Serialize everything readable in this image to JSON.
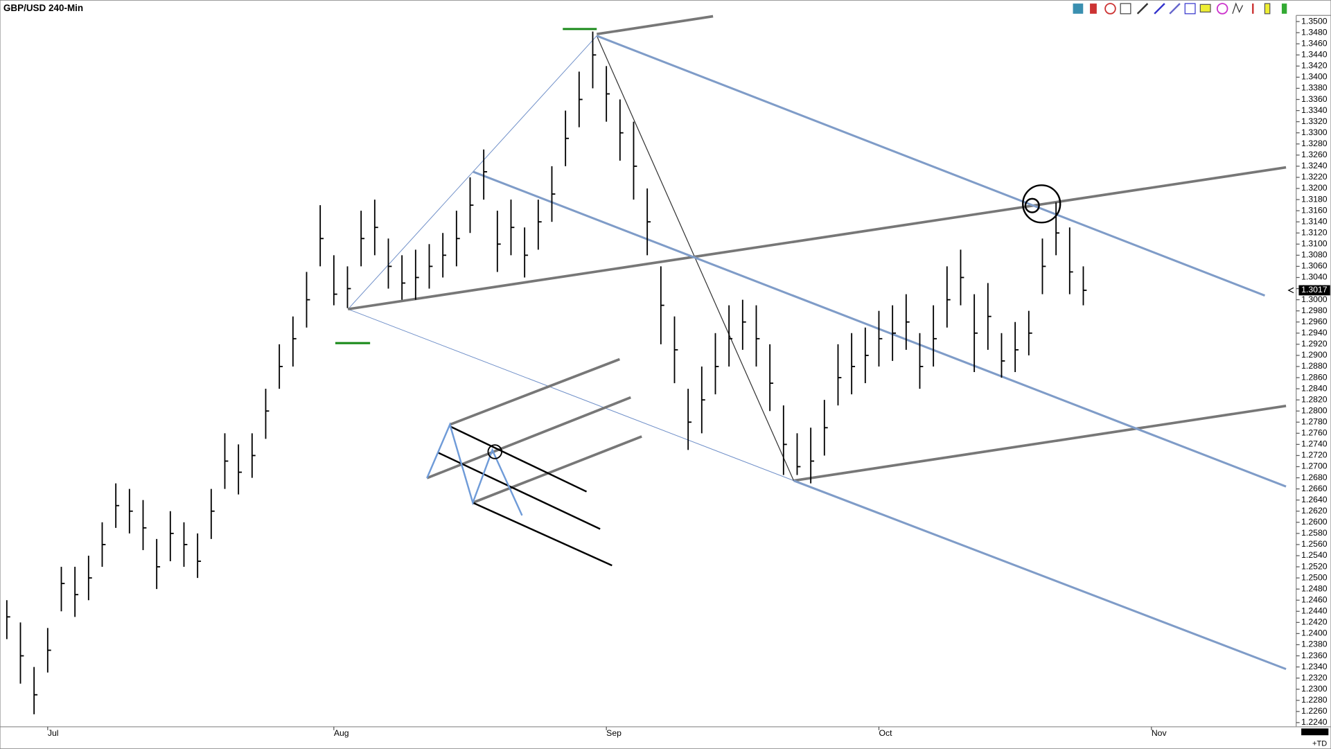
{
  "chart_data": {
    "type": "ohlc",
    "title": "GBP/USD 240-Min",
    "categories": [
      null,
      null,
      null,
      "Jul",
      null,
      null,
      null,
      null,
      null,
      null,
      null,
      null,
      null,
      null,
      null,
      null,
      null,
      null,
      null,
      null,
      null,
      null,
      null,
      null,
      "Aug",
      null,
      null,
      null,
      null,
      null,
      null,
      null,
      null,
      null,
      null,
      null,
      null,
      null,
      null,
      null,
      null,
      null,
      null,
      null,
      "Sep",
      null,
      null,
      null,
      null,
      null,
      null,
      null,
      null,
      null,
      null,
      null,
      null,
      null,
      null,
      null,
      null,
      null,
      null,
      null,
      "Oct",
      null,
      null,
      null,
      null,
      null,
      null,
      null,
      null,
      null,
      null,
      null,
      null,
      null,
      null,
      null,
      null,
      null,
      null,
      null,
      "Nov",
      null,
      null,
      null,
      null,
      null,
      null,
      null,
      null,
      null,
      null
    ],
    "high": [
      1.246,
      1.242,
      1.234,
      1.241,
      1.252,
      1.252,
      1.254,
      1.26,
      1.267,
      1.266,
      1.264,
      1.257,
      1.262,
      1.26,
      1.258,
      1.266,
      1.276,
      1.274,
      1.276,
      1.284,
      1.292,
      1.297,
      1.305,
      1.317,
      1.308,
      1.306,
      1.316,
      1.318,
      1.311,
      1.308,
      1.309,
      1.31,
      1.312,
      1.316,
      1.322,
      1.327,
      1.316,
      1.318,
      1.313,
      1.318,
      1.324,
      1.334,
      1.341,
      1.3482,
      1.342,
      1.336,
      1.332,
      1.32,
      1.306,
      1.297,
      1.284,
      1.288,
      1.294,
      1.299,
      1.3,
      1.299,
      1.292,
      1.281,
      1.276,
      1.277,
      1.282,
      1.292,
      1.294,
      1.295,
      1.298,
      1.299,
      1.301,
      1.294,
      1.299,
      1.306,
      1.309,
      1.301,
      1.303,
      1.294,
      1.296,
      1.298,
      1.311,
      1.3175,
      1.313,
      1.306,
      null,
      null,
      null,
      null,
      null,
      null,
      null,
      null,
      null,
      null,
      null,
      null,
      null,
      null,
      null
    ],
    "low": [
      1.239,
      1.231,
      1.2255,
      1.233,
      1.244,
      1.243,
      1.246,
      1.252,
      1.259,
      1.258,
      1.255,
      1.248,
      1.253,
      1.252,
      1.25,
      1.257,
      1.266,
      1.265,
      1.268,
      1.275,
      1.284,
      1.288,
      1.295,
      1.306,
      1.299,
      1.2985,
      1.306,
      1.308,
      1.302,
      1.3,
      1.3,
      1.302,
      1.304,
      1.306,
      1.312,
      1.318,
      1.305,
      1.308,
      1.304,
      1.309,
      1.314,
      1.324,
      1.331,
      1.338,
      1.332,
      1.325,
      1.318,
      1.308,
      1.292,
      1.285,
      1.273,
      1.276,
      1.283,
      1.288,
      1.291,
      1.288,
      1.28,
      1.2685,
      1.2685,
      1.267,
      1.272,
      1.281,
      1.283,
      1.285,
      1.288,
      1.289,
      1.291,
      1.284,
      1.288,
      1.295,
      1.299,
      1.287,
      1.291,
      1.286,
      1.287,
      1.29,
      1.301,
      1.308,
      1.301,
      1.299,
      null,
      null,
      null,
      null,
      null,
      null,
      null,
      null,
      null,
      null,
      null,
      null,
      null,
      null,
      null
    ],
    "close": [
      1.243,
      1.236,
      1.229,
      1.237,
      1.249,
      1.247,
      1.25,
      1.256,
      1.263,
      1.262,
      1.259,
      1.252,
      1.258,
      1.256,
      1.253,
      1.262,
      1.271,
      1.269,
      1.272,
      1.28,
      1.288,
      1.293,
      1.3,
      1.311,
      1.301,
      1.302,
      1.311,
      1.313,
      1.306,
      1.303,
      1.304,
      1.306,
      1.308,
      1.311,
      1.317,
      1.323,
      1.31,
      1.313,
      1.308,
      1.314,
      1.319,
      1.329,
      1.336,
      1.344,
      1.337,
      1.33,
      1.324,
      1.314,
      1.299,
      1.291,
      1.278,
      1.282,
      1.288,
      1.293,
      1.296,
      1.293,
      1.285,
      1.274,
      1.27,
      1.271,
      1.277,
      1.286,
      1.288,
      1.29,
      1.293,
      1.294,
      1.296,
      1.288,
      1.293,
      1.3,
      1.304,
      1.294,
      1.297,
      1.289,
      1.291,
      1.294,
      1.306,
      1.312,
      1.305,
      1.3017,
      null,
      null,
      null,
      null,
      null,
      null,
      null,
      null,
      null,
      null,
      null,
      null,
      null,
      null,
      null
    ],
    "color": "#000000",
    "last_price": 1.3017,
    "footer_label": "+TD",
    "ylim": [
      1.2234,
      1.3511
    ],
    "yticks": [
      {
        "value": 1.224,
        "label": "1.2240"
      },
      {
        "value": 1.226,
        "label": "1.2260"
      },
      {
        "value": 1.228,
        "label": "1.2280"
      },
      {
        "value": 1.23,
        "label": "1.2300"
      },
      {
        "value": 1.232,
        "label": "1.2320"
      },
      {
        "value": 1.234,
        "label": "1.2340"
      },
      {
        "value": 1.236,
        "label": "1.2360"
      },
      {
        "value": 1.238,
        "label": "1.2380"
      },
      {
        "value": 1.24,
        "label": "1.2400"
      },
      {
        "value": 1.242,
        "label": "1.2420"
      },
      {
        "value": 1.244,
        "label": "1.2440"
      },
      {
        "value": 1.246,
        "label": "1.2460"
      },
      {
        "value": 1.248,
        "label": "1.2480"
      },
      {
        "value": 1.25,
        "label": "1.2500"
      },
      {
        "value": 1.252,
        "label": "1.2520"
      },
      {
        "value": 1.254,
        "label": "1.2540"
      },
      {
        "value": 1.256,
        "label": "1.2560"
      },
      {
        "value": 1.258,
        "label": "1.2580"
      },
      {
        "value": 1.26,
        "label": "1.2600"
      },
      {
        "value": 1.262,
        "label": "1.2620"
      },
      {
        "value": 1.264,
        "label": "1.2640"
      },
      {
        "value": 1.266,
        "label": "1.2660"
      },
      {
        "value": 1.268,
        "label": "1.2680"
      },
      {
        "value": 1.27,
        "label": "1.2700"
      },
      {
        "value": 1.272,
        "label": "1.2720"
      },
      {
        "value": 1.274,
        "label": "1.2740"
      },
      {
        "value": 1.276,
        "label": "1.2760"
      },
      {
        "value": 1.278,
        "label": "1.2780"
      },
      {
        "value": 1.28,
        "label": "1.2800"
      },
      {
        "value": 1.282,
        "label": "1.2820"
      },
      {
        "value": 1.284,
        "label": "1.2840"
      },
      {
        "value": 1.286,
        "label": "1.2860"
      },
      {
        "value": 1.288,
        "label": "1.2880"
      },
      {
        "value": 1.29,
        "label": "1.2900"
      },
      {
        "value": 1.292,
        "label": "1.2920"
      },
      {
        "value": 1.294,
        "label": "1.2940"
      },
      {
        "value": 1.296,
        "label": "1.2960"
      },
      {
        "value": 1.298,
        "label": "1.2980"
      },
      {
        "value": 1.3,
        "label": "1.3000"
      },
      {
        "value": 1.302,
        "label": "1.3020"
      },
      {
        "value": 1.304,
        "label": "1.3040"
      },
      {
        "value": 1.306,
        "label": "1.3060"
      },
      {
        "value": 1.308,
        "label": "1.3080"
      },
      {
        "value": 1.31,
        "label": "1.3100"
      },
      {
        "value": 1.312,
        "label": "1.3120"
      },
      {
        "value": 1.314,
        "label": "1.3140"
      },
      {
        "value": 1.316,
        "label": "1.3160"
      },
      {
        "value": 1.318,
        "label": "1.3180"
      },
      {
        "value": 1.32,
        "label": "1.3200"
      },
      {
        "value": 1.322,
        "label": "1.3220"
      },
      {
        "value": 1.324,
        "label": "1.3240"
      },
      {
        "value": 1.326,
        "label": "1.3260"
      },
      {
        "value": 1.328,
        "label": "1.3280"
      },
      {
        "value": 1.33,
        "label": "1.3300"
      },
      {
        "value": 1.332,
        "label": "1.3320"
      },
      {
        "value": 1.334,
        "label": "1.3340"
      },
      {
        "value": 1.336,
        "label": "1.3360"
      },
      {
        "value": 1.338,
        "label": "1.3380"
      },
      {
        "value": 1.34,
        "label": "1.3400"
      },
      {
        "value": 1.342,
        "label": "1.3420"
      },
      {
        "value": 1.344,
        "label": "1.3440"
      },
      {
        "value": 1.346,
        "label": "1.3460"
      },
      {
        "value": 1.348,
        "label": "1.3480"
      },
      {
        "value": 1.35,
        "label": "1.3500"
      }
    ],
    "grid": false
  }
}
